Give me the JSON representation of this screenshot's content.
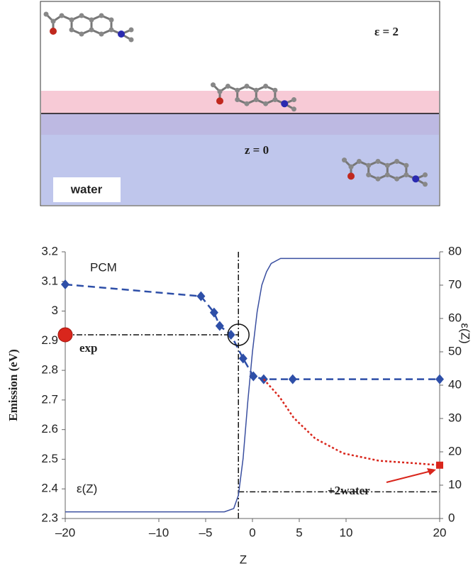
{
  "diagram": {
    "epsilon_label": "ε = 2",
    "interface_label": "z = 0",
    "water_label": "water"
  },
  "chart_data": {
    "type": "line",
    "xlabel": "Z",
    "ylabel": "Emission (eV)",
    "y2label": "ε(Z)",
    "xlim": [
      -20,
      20
    ],
    "xticks": [
      {
        "value": -20,
        "label": "–20"
      },
      {
        "value": -10,
        "label": "–10"
      },
      {
        "value": -5,
        "label": "–5"
      },
      0,
      5,
      10,
      20
    ],
    "ylim": [
      2.3,
      3.2
    ],
    "yticks": [
      3.2,
      3.1,
      3,
      2.9,
      2.8,
      2.7,
      2.6,
      2.5,
      2.4,
      2.3
    ],
    "y2lim": [
      0,
      80
    ],
    "y2ticks": [
      80,
      70,
      60,
      50,
      40,
      30,
      20,
      10,
      0
    ],
    "series": [
      {
        "name": "PCM",
        "color": "#2e4fa8",
        "x": [
          -20,
          -5.5,
          -4.1,
          -3.5,
          -2.3,
          -1,
          0.1,
          1.2,
          4.3,
          20
        ],
        "values": [
          3.09,
          3.05,
          2.995,
          2.95,
          2.92,
          2.84,
          2.78,
          2.77,
          2.77,
          2.77
        ]
      },
      {
        "name": "exp",
        "color": "#d9261c",
        "x": [
          -20
        ],
        "values": [
          2.92
        ]
      },
      {
        "name": "+2water",
        "color": "#d9261c",
        "x": [
          1.2,
          2.9,
          4.4,
          6.7,
          9.7,
          13.5,
          18,
          20
        ],
        "values": [
          2.77,
          2.71,
          2.64,
          2.57,
          2.52,
          2.495,
          2.485,
          2.48
        ]
      },
      {
        "name": "ε(Z)",
        "color": "#3a4fa0",
        "axis": "y2",
        "x": [
          -20,
          -3,
          -2,
          -1.5,
          -1,
          -0.5,
          0,
          0.5,
          1,
          1.5,
          2,
          3,
          20
        ],
        "values": [
          2,
          2,
          3,
          7,
          18,
          35,
          50,
          62,
          70,
          74,
          76.5,
          78,
          78
        ]
      }
    ],
    "vline_x": -1.5,
    "hline_y": 2.92,
    "hline_y2": 8,
    "circle_marker": {
      "x": -1.5,
      "y": 2.92
    }
  }
}
